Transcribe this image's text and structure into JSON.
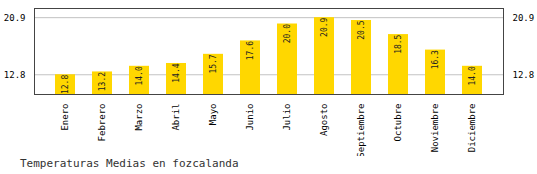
{
  "chart_data": {
    "type": "bar",
    "title": "Temperaturas Medias en fozcalanda",
    "categories": [
      "Enero",
      "Febrero",
      "Marzo",
      "Abril",
      "Mayo",
      "Junio",
      "Julio",
      "Agosto",
      "Septiembre",
      "Octubre",
      "Noviembre",
      "Diciembre"
    ],
    "values": [
      12.8,
      13.2,
      14.0,
      14.4,
      15.7,
      17.6,
      20.0,
      20.9,
      20.5,
      18.5,
      16.3,
      14.0
    ],
    "value_labels": [
      "12.8",
      "13.2",
      "14.0",
      "14.4",
      "15.7",
      "17.6",
      "20.0",
      "20.9",
      "20.5",
      "18.5",
      "16.3",
      "14.0"
    ],
    "data_labels": true,
    "color": "#FFD700",
    "ylim": [
      10.0,
      22.2
    ],
    "yticks": [
      12.8,
      20.9
    ],
    "grid": true
  }
}
